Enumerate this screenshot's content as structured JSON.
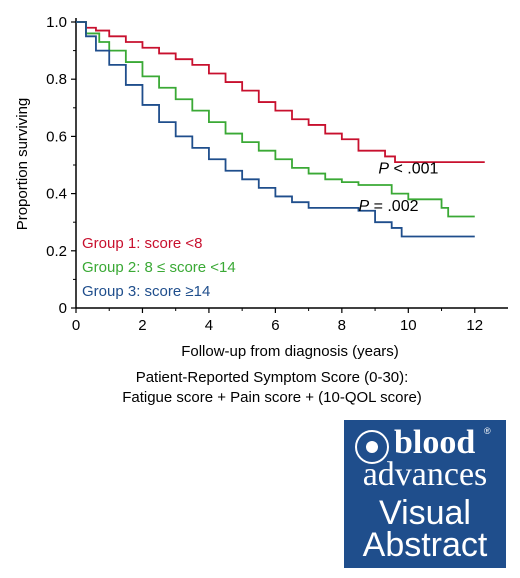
{
  "chart_data": {
    "type": "line",
    "step": true,
    "xlabel": "Follow-up from diagnosis (years)",
    "ylabel": "Proportion surviving",
    "xlim": [
      0,
      13
    ],
    "ylim": [
      0,
      1.0
    ],
    "xticks": [
      0,
      2,
      4,
      6,
      8,
      10,
      12
    ],
    "yticks": [
      0,
      0.2,
      0.4,
      0.6,
      0.8,
      1.0
    ],
    "series": [
      {
        "name": "Group 1: score <8",
        "color": "#c8102e",
        "points": [
          [
            0,
            1.0
          ],
          [
            0.3,
            0.98
          ],
          [
            0.6,
            0.97
          ],
          [
            1.0,
            0.95
          ],
          [
            1.5,
            0.93
          ],
          [
            2.0,
            0.91
          ],
          [
            2.5,
            0.89
          ],
          [
            3.0,
            0.87
          ],
          [
            3.5,
            0.85
          ],
          [
            4.0,
            0.82
          ],
          [
            4.5,
            0.79
          ],
          [
            5.0,
            0.76
          ],
          [
            5.5,
            0.72
          ],
          [
            6.0,
            0.69
          ],
          [
            6.5,
            0.66
          ],
          [
            7.0,
            0.64
          ],
          [
            7.5,
            0.61
          ],
          [
            8.0,
            0.59
          ],
          [
            8.5,
            0.55
          ],
          [
            9.0,
            0.55
          ],
          [
            9.3,
            0.53
          ],
          [
            9.6,
            0.51
          ],
          [
            10.0,
            0.51
          ],
          [
            11.0,
            0.51
          ],
          [
            12.3,
            0.51
          ]
        ]
      },
      {
        "name": "Group 2: 8 ≤ score <14",
        "color": "#3aa935",
        "points": [
          [
            0,
            1.0
          ],
          [
            0.3,
            0.96
          ],
          [
            0.7,
            0.93
          ],
          [
            1.0,
            0.9
          ],
          [
            1.5,
            0.86
          ],
          [
            2.0,
            0.81
          ],
          [
            2.5,
            0.77
          ],
          [
            3.0,
            0.73
          ],
          [
            3.5,
            0.69
          ],
          [
            4.0,
            0.65
          ],
          [
            4.5,
            0.61
          ],
          [
            5.0,
            0.58
          ],
          [
            5.5,
            0.55
          ],
          [
            6.0,
            0.52
          ],
          [
            6.5,
            0.49
          ],
          [
            7.0,
            0.47
          ],
          [
            7.5,
            0.45
          ],
          [
            8.0,
            0.44
          ],
          [
            8.5,
            0.43
          ],
          [
            9.0,
            0.43
          ],
          [
            9.5,
            0.4
          ],
          [
            10.0,
            0.38
          ],
          [
            10.5,
            0.38
          ],
          [
            11.0,
            0.35
          ],
          [
            11.2,
            0.32
          ],
          [
            12.0,
            0.32
          ]
        ]
      },
      {
        "name": "Group 3: score ≥14",
        "color": "#1f4e8c",
        "points": [
          [
            0,
            1.0
          ],
          [
            0.3,
            0.95
          ],
          [
            0.6,
            0.9
          ],
          [
            1.0,
            0.85
          ],
          [
            1.5,
            0.78
          ],
          [
            2.0,
            0.71
          ],
          [
            2.5,
            0.65
          ],
          [
            3.0,
            0.6
          ],
          [
            3.5,
            0.56
          ],
          [
            4.0,
            0.52
          ],
          [
            4.5,
            0.48
          ],
          [
            5.0,
            0.45
          ],
          [
            5.5,
            0.42
          ],
          [
            6.0,
            0.39
          ],
          [
            6.5,
            0.37
          ],
          [
            7.0,
            0.35
          ],
          [
            7.5,
            0.35
          ],
          [
            8.0,
            0.35
          ],
          [
            8.5,
            0.34
          ],
          [
            9.0,
            0.3
          ],
          [
            9.5,
            0.28
          ],
          [
            9.8,
            0.25
          ],
          [
            10.5,
            0.25
          ],
          [
            12.0,
            0.25
          ]
        ]
      }
    ],
    "annotations": [
      {
        "italic": "P",
        "text": " < .001",
        "x": 9.1,
        "y": 0.47
      },
      {
        "italic": "P",
        "text": " = .002",
        "x": 8.5,
        "y": 0.34
      }
    ],
    "legend_placement": "bottom-left",
    "grid": false
  },
  "caption": {
    "line1": "Patient-Reported Symptom Score (0-30):",
    "line2": "Fatigue score + Pain score + (10-QOL score)"
  },
  "badge": {
    "word1": "blood",
    "word2": "advances",
    "word3": "Visual",
    "word4": "Abstract",
    "reg": "®",
    "background": "#1f4e8c"
  }
}
